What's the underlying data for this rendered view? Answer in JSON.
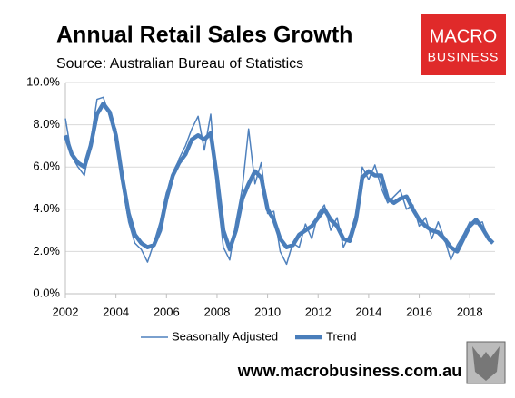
{
  "chart_data": {
    "type": "line",
    "title": "Annual Retail Sales Growth",
    "subtitle": "Source: Australian Bureau of Statistics",
    "logo": {
      "line1": "MACRO",
      "line2": "BUSINESS"
    },
    "footer": "www.macrobusiness.com.au",
    "x": [
      2002.0,
      2002.25,
      2002.5,
      2002.75,
      2003.0,
      2003.25,
      2003.5,
      2003.75,
      2004.0,
      2004.25,
      2004.5,
      2004.75,
      2005.0,
      2005.25,
      2005.5,
      2005.75,
      2006.0,
      2006.25,
      2006.5,
      2006.75,
      2007.0,
      2007.25,
      2007.5,
      2007.75,
      2008.0,
      2008.25,
      2008.5,
      2008.75,
      2009.0,
      2009.25,
      2009.5,
      2009.75,
      2010.0,
      2010.25,
      2010.5,
      2010.75,
      2011.0,
      2011.25,
      2011.5,
      2011.75,
      2012.0,
      2012.25,
      2012.5,
      2012.75,
      2013.0,
      2013.25,
      2013.5,
      2013.75,
      2014.0,
      2014.25,
      2014.5,
      2014.75,
      2015.0,
      2015.25,
      2015.5,
      2015.75,
      2016.0,
      2016.25,
      2016.5,
      2016.75,
      2017.0,
      2017.25,
      2017.5,
      2017.75,
      2018.0,
      2018.25,
      2018.5,
      2018.75,
      2018.92
    ],
    "series": [
      {
        "name": "Seasonally Adjusted",
        "color": "#4f81bd",
        "width": 1.5,
        "values": [
          8.3,
          6.5,
          6.0,
          5.6,
          7.2,
          9.2,
          9.3,
          8.4,
          7.8,
          5.2,
          3.4,
          2.4,
          2.1,
          1.5,
          2.4,
          3.4,
          4.8,
          5.4,
          6.4,
          7.0,
          7.8,
          8.4,
          6.8,
          8.5,
          4.8,
          2.2,
          1.6,
          3.4,
          5.0,
          7.8,
          5.2,
          6.2,
          3.8,
          3.9,
          2.0,
          1.4,
          2.4,
          2.2,
          3.3,
          2.6,
          3.8,
          4.2,
          3.0,
          3.6,
          2.2,
          2.8,
          3.8,
          6.0,
          5.4,
          6.1,
          5.0,
          4.3,
          4.6,
          4.9,
          4.0,
          4.2,
          3.2,
          3.6,
          2.6,
          3.4,
          2.6,
          1.6,
          2.3,
          2.8,
          3.4,
          3.3,
          3.4,
          2.5,
          2.4
        ]
      },
      {
        "name": "Trend",
        "color": "#4a7ebb",
        "width": 4.5,
        "values": [
          7.5,
          6.6,
          6.2,
          6.0,
          7.0,
          8.5,
          9.0,
          8.6,
          7.5,
          5.5,
          3.8,
          2.8,
          2.4,
          2.2,
          2.3,
          3.0,
          4.5,
          5.6,
          6.2,
          6.6,
          7.3,
          7.5,
          7.3,
          7.6,
          5.5,
          3.0,
          2.1,
          3.0,
          4.5,
          5.2,
          5.8,
          5.5,
          4.0,
          3.5,
          2.6,
          2.2,
          2.3,
          2.8,
          3.0,
          3.2,
          3.6,
          4.0,
          3.5,
          3.2,
          2.6,
          2.5,
          3.5,
          5.5,
          5.8,
          5.6,
          5.6,
          4.5,
          4.3,
          4.5,
          4.6,
          4.0,
          3.5,
          3.2,
          3.0,
          2.9,
          2.6,
          2.2,
          2.0,
          2.6,
          3.2,
          3.5,
          3.1,
          2.6,
          2.4
        ]
      }
    ],
    "xlim": [
      2002,
      2019
    ],
    "xticks": [
      2002,
      2004,
      2006,
      2008,
      2010,
      2012,
      2014,
      2016,
      2018
    ],
    "ylim": [
      0,
      10
    ],
    "yticks": [
      {
        "value": 0,
        "label": "0.0%"
      },
      {
        "value": 2,
        "label": "2.0%"
      },
      {
        "value": 4,
        "label": "4.0%"
      },
      {
        "value": 6,
        "label": "6.0%"
      },
      {
        "value": 8,
        "label": "8.0%"
      },
      {
        "value": 10,
        "label": "10.0%"
      }
    ],
    "grid": true
  }
}
